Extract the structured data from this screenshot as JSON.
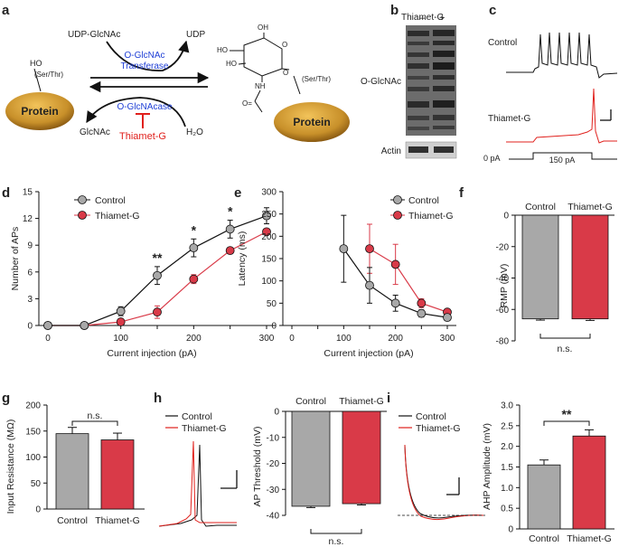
{
  "panel_labels": [
    "a",
    "b",
    "c",
    "d",
    "e",
    "f",
    "g",
    "h",
    "i"
  ],
  "colors": {
    "control": "#a8a8a8",
    "thiamet": "#d93a48",
    "blue": "#1f3fd6",
    "red": "#e0201c",
    "protein": "#c8902a"
  },
  "panel_a": {
    "protein_left": "Protein",
    "protein_right": "Protein",
    "ser_thr": "(Ser/Thr)",
    "ho": "HO",
    "udp_glcnac": "UDP-GlcNAc",
    "udp": "UDP",
    "transferase_1": "O-GlcNAc",
    "transferase_2": "Transferase",
    "ogase": "O-GlcNAcase",
    "glcnac": "GlcNAc",
    "h2o": "H₂O",
    "inhibitor": "Thiamet-G",
    "sugar_ho1": "HO",
    "sugar_ho2": "HO",
    "sugar_oh": "OH",
    "sugar_o1": "O",
    "sugar_o2": "O",
    "sugar_nh": "NH",
    "sugar_carbonyl": "O="
  },
  "panel_b": {
    "treatment": "Thiamet-G",
    "minus": "–",
    "plus": "+",
    "blot_label": "O-GlcNAc",
    "loading_label": "Actin"
  },
  "panel_c": {
    "control_label": "Control",
    "thiamet_label": "Thiamet-G",
    "baseline_label": "0 pA",
    "step_label": "150 pA"
  },
  "panel_d": {
    "type": "line",
    "ylabel": "Number of APs",
    "xlabel": "Current injection (pA)",
    "x": [
      0,
      50,
      100,
      150,
      200,
      250,
      300
    ],
    "xticks": [
      "0",
      "100",
      "200",
      "300"
    ],
    "ylim": [
      0,
      15
    ],
    "yticks": [
      "0",
      "3",
      "6",
      "9",
      "12",
      "15"
    ],
    "series": [
      {
        "name": "Control",
        "values": [
          0,
          0,
          1.6,
          5.6,
          8.7,
          10.8,
          12.3
        ],
        "errors": [
          0,
          0,
          0.5,
          1.0,
          1.0,
          1.0,
          0.9
        ]
      },
      {
        "name": "Thiamet-G",
        "values": [
          0,
          0,
          0.4,
          1.5,
          5.2,
          8.4,
          10.5
        ],
        "errors": [
          0,
          0,
          0.2,
          0.7,
          0.5,
          0.3,
          0.3
        ]
      }
    ],
    "significance": [
      {
        "x": 150,
        "label": "**"
      },
      {
        "x": 200,
        "label": "*"
      },
      {
        "x": 250,
        "label": "*"
      }
    ]
  },
  "panel_e": {
    "type": "line",
    "ylabel": "Latency (ms)",
    "xlabel": "Current injection (pA)",
    "xticks": [
      "0",
      "100",
      "200",
      "300"
    ],
    "ylim": [
      0,
      300
    ],
    "yticks": [
      "0",
      "50",
      "100",
      "150",
      "200",
      "250",
      "300"
    ],
    "series": [
      {
        "name": "Control",
        "x": [
          100,
          150,
          200,
          250,
          300
        ],
        "values": [
          172,
          90,
          50,
          27,
          18
        ],
        "errors": [
          75,
          40,
          18,
          8,
          5
        ]
      },
      {
        "name": "Thiamet-G",
        "x": [
          150,
          200,
          250,
          300
        ],
        "values": [
          172,
          137,
          50,
          30
        ],
        "errors": [
          55,
          45,
          10,
          5
        ]
      }
    ]
  },
  "panel_f": {
    "type": "bar",
    "ylabel": "RMP (mV)",
    "categories": [
      "Control",
      "Thiamet-G"
    ],
    "values": [
      -66,
      -66
    ],
    "errors": [
      0.8,
      1.0
    ],
    "ylim": [
      -80,
      0
    ],
    "yticks": [
      "0",
      "-20",
      "-40",
      "-60",
      "-80"
    ],
    "significance": "n.s."
  },
  "panel_g": {
    "type": "bar",
    "ylabel": "Input Resistance (MΩ)",
    "categories": [
      "Control",
      "Thiamet-G"
    ],
    "values": [
      145,
      133
    ],
    "errors": [
      12,
      13
    ],
    "ylim": [
      0,
      200
    ],
    "yticks": [
      "0",
      "50",
      "100",
      "150",
      "200"
    ],
    "significance": "n.s."
  },
  "panel_h": {
    "legend": [
      "Control",
      "Thiamet-G"
    ],
    "type": "bar",
    "ylabel": "AP Threshold (mV)",
    "categories": [
      "Control",
      "Thiamet-G"
    ],
    "values": [
      -36.5,
      -35.5
    ],
    "errors": [
      0.5,
      0.5
    ],
    "ylim": [
      -40,
      0
    ],
    "yticks": [
      "0",
      "-10",
      "-20",
      "-30",
      "-40"
    ],
    "significance": "n.s."
  },
  "panel_i": {
    "legend": [
      "Control",
      "Thiamet-G"
    ],
    "type": "bar",
    "ylabel": "AHP Amplitude (mV)",
    "categories": [
      "Control",
      "Thiamet-G"
    ],
    "values": [
      1.55,
      2.25
    ],
    "errors": [
      0.12,
      0.15
    ],
    "ylim": [
      0,
      3.0
    ],
    "yticks": [
      "0",
      "0.5",
      "1.0",
      "1.5",
      "2.0",
      "2.5",
      "3.0"
    ],
    "significance": "**"
  }
}
